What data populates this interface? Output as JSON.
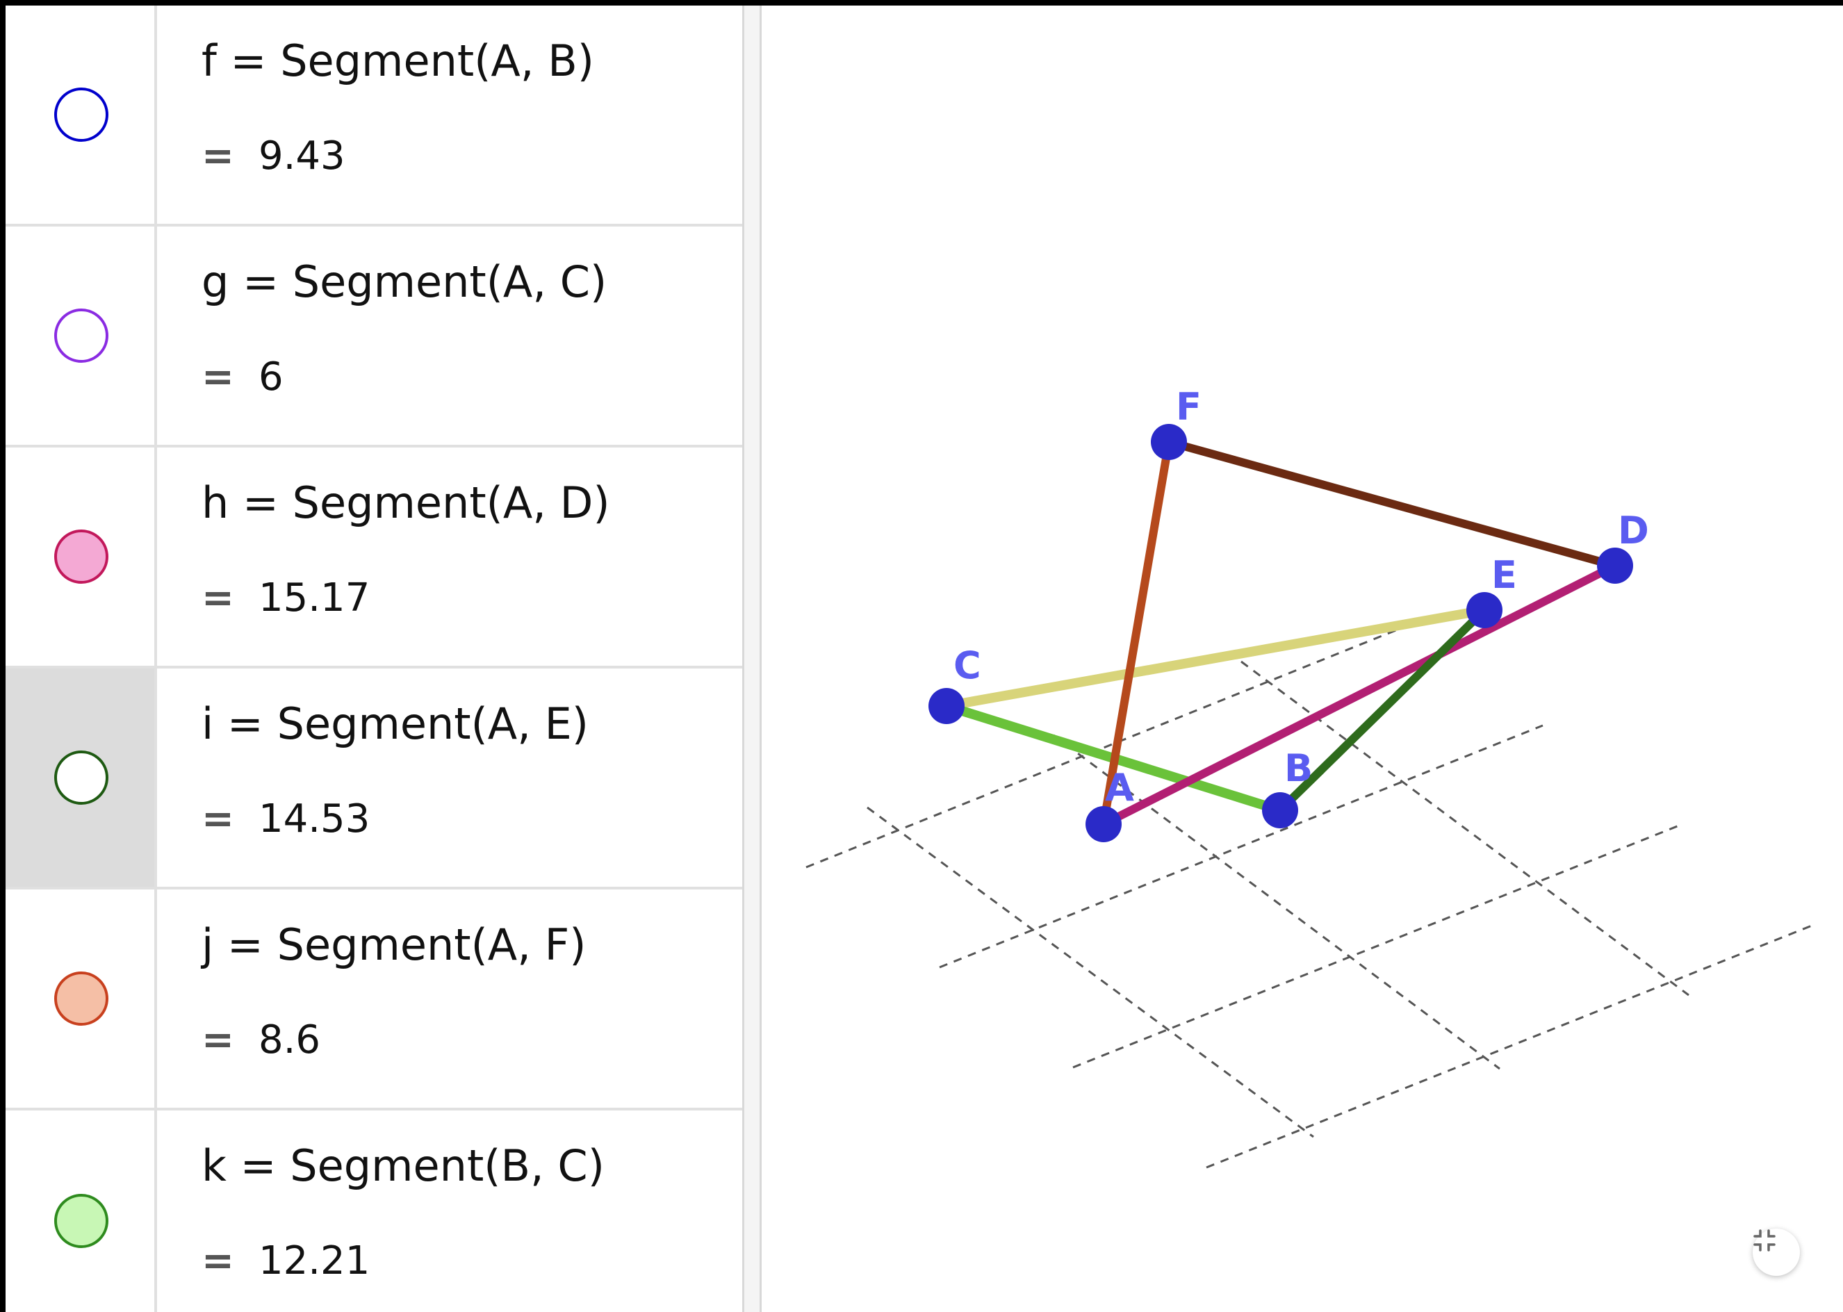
{
  "algebra_view": {
    "rows": [
      {
        "name": "f",
        "definition": "f  =  Segment(A, B)",
        "value_symbol": "=",
        "value": "9.43",
        "color": "#0000cc",
        "filled": false
      },
      {
        "name": "g",
        "definition": "g  =  Segment(A, C)",
        "value_symbol": "=",
        "value": "6",
        "color": "#8a2be2",
        "filled": false
      },
      {
        "name": "h",
        "definition": "h  =  Segment(A, D)",
        "value_symbol": "=",
        "value": "15.17",
        "color": "#c2185b",
        "filled": true,
        "fill": "#f4a9d4"
      },
      {
        "name": "i",
        "definition": "i  =  Segment(A, E)",
        "value_symbol": "=",
        "value": "14.53",
        "color": "#1e5a12",
        "filled": false
      },
      {
        "name": "j",
        "definition": "j  =  Segment(A, F)",
        "value_symbol": "=",
        "value": "8.6",
        "color": "#c8401e",
        "filled": true,
        "fill": "#f5bfa6"
      },
      {
        "name": "k",
        "definition": "k  =  Segment(B, C)",
        "value_symbol": "=",
        "value": "12.21",
        "color": "#2e8b1e",
        "filled": true,
        "fill": "#c8f7b5"
      }
    ],
    "selected_row": "i"
  },
  "graphics_view": {
    "points": [
      {
        "label": "A"
      },
      {
        "label": "B"
      },
      {
        "label": "C"
      },
      {
        "label": "D"
      },
      {
        "label": "E"
      },
      {
        "label": "F"
      }
    ],
    "segments": [
      {
        "from": "A",
        "to": "F",
        "color": "#b5491c"
      },
      {
        "from": "F",
        "to": "D",
        "color": "#6b2a12"
      },
      {
        "from": "A",
        "to": "D",
        "color": "#b21f73"
      },
      {
        "from": "C",
        "to": "E",
        "color": "#d8d47a"
      },
      {
        "from": "C",
        "to": "B",
        "color": "#6ac23a"
      },
      {
        "from": "B",
        "to": "E",
        "color": "#2e6b1c"
      }
    ],
    "point_color": "#2a2ac8",
    "label_color": "#5a5cf0",
    "grid": "dashed"
  },
  "buttons": {
    "fullscreen_icon": "exit-fullscreen-icon"
  }
}
